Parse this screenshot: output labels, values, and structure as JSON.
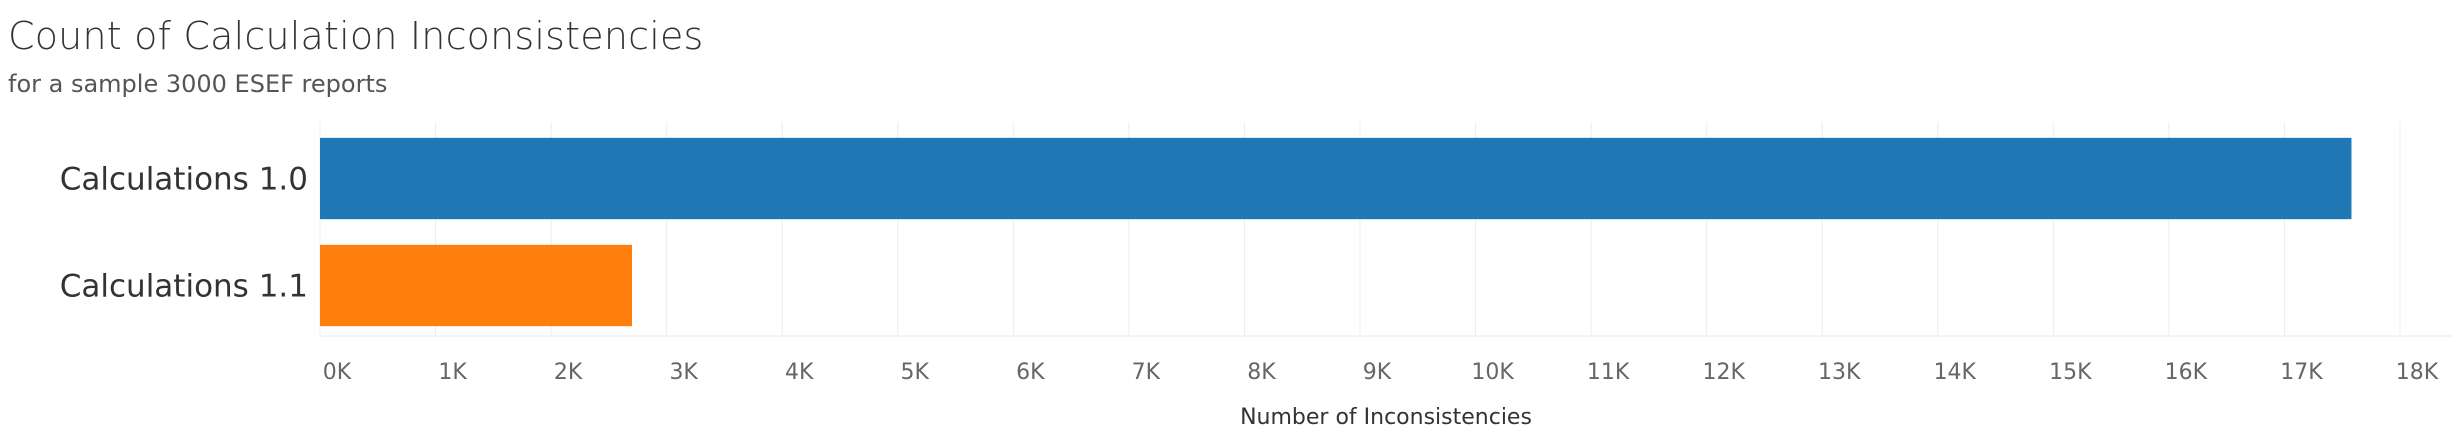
{
  "chart_data": {
    "type": "bar",
    "orientation": "horizontal",
    "title": "Count of Calculation Inconsistencies",
    "subtitle": "for a sample 3000 ESEF reports",
    "categories": [
      "Calculations 1.0",
      "Calculations 1.1"
    ],
    "values": [
      17580,
      2700
    ],
    "colors": [
      "#1f77b4",
      "#ff7f0e"
    ],
    "xlabel": "Number of Inconsistencies",
    "ylabel": "",
    "xlim": [
      0,
      18450
    ],
    "xticks": [
      0,
      1000,
      2000,
      3000,
      4000,
      5000,
      6000,
      7000,
      8000,
      9000,
      10000,
      11000,
      12000,
      13000,
      14000,
      15000,
      16000,
      17000,
      18000
    ],
    "xtick_labels": [
      "0K",
      "1K",
      "2K",
      "3K",
      "4K",
      "5K",
      "6K",
      "7K",
      "8K",
      "9K",
      "10K",
      "11K",
      "12K",
      "13K",
      "14K",
      "15K",
      "16K",
      "17K",
      "18K"
    ],
    "grid": true,
    "legend": "none"
  }
}
